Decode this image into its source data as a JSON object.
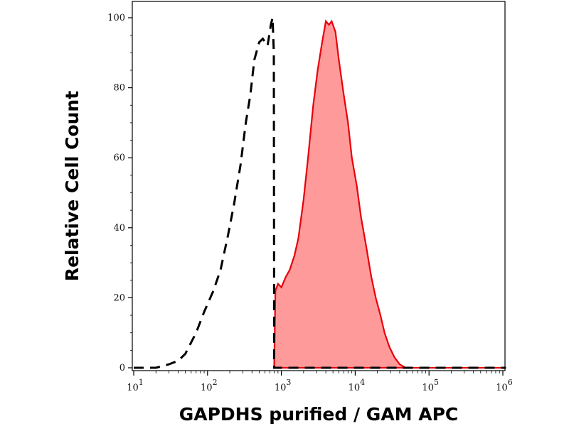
{
  "chart_data": {
    "type": "area",
    "title": "",
    "xlabel": "GAPDHS purified / GAM APC",
    "ylabel": "Relative Cell Count",
    "x_scale": "log",
    "xlim": [
      10,
      1100000
    ],
    "ylim": [
      0,
      100
    ],
    "grid": false,
    "x_ticks": [
      {
        "value": 10,
        "base": "10",
        "exp": "1"
      },
      {
        "value": 100,
        "base": "10",
        "exp": "2"
      },
      {
        "value": 1000,
        "base": "10",
        "exp": "3"
      },
      {
        "value": 10000,
        "base": "10",
        "exp": "4"
      },
      {
        "value": 100000,
        "base": "10",
        "exp": "5"
      },
      {
        "value": 1000000,
        "base": "10",
        "exp": "6"
      }
    ],
    "y_ticks": [
      {
        "value": 0,
        "label": "0"
      },
      {
        "value": 20,
        "label": "20"
      },
      {
        "value": 40,
        "label": "40"
      },
      {
        "value": 60,
        "label": "60"
      },
      {
        "value": 80,
        "label": "80"
      },
      {
        "value": 100,
        "label": "100"
      }
    ],
    "series": [
      {
        "style": "filled",
        "color": "#e8000b",
        "fill": "#ff9a9a",
        "points": [
          [
            800,
            0
          ],
          [
            830,
            22
          ],
          [
            900,
            24
          ],
          [
            1000,
            23
          ],
          [
            1150,
            26
          ],
          [
            1300,
            28
          ],
          [
            1500,
            32
          ],
          [
            1700,
            37
          ],
          [
            2000,
            48
          ],
          [
            2300,
            60
          ],
          [
            2700,
            75
          ],
          [
            3100,
            85
          ],
          [
            3500,
            92
          ],
          [
            4000,
            99
          ],
          [
            4400,
            98
          ],
          [
            4800,
            99
          ],
          [
            5400,
            96
          ],
          [
            6000,
            88
          ],
          [
            7000,
            78
          ],
          [
            8000,
            70
          ],
          [
            9000,
            60
          ],
          [
            10500,
            52
          ],
          [
            12000,
            43
          ],
          [
            14000,
            35
          ],
          [
            16500,
            26
          ],
          [
            19000,
            20
          ],
          [
            22000,
            15
          ],
          [
            25000,
            10
          ],
          [
            29000,
            6
          ],
          [
            34000,
            3
          ],
          [
            40000,
            1
          ],
          [
            48000,
            0
          ],
          [
            1100000,
            0
          ]
        ]
      },
      {
        "style": "dashed",
        "color": "#000000",
        "points": [
          [
            10,
            0
          ],
          [
            20,
            0
          ],
          [
            30,
            1
          ],
          [
            40,
            2
          ],
          [
            50,
            4
          ],
          [
            70,
            10
          ],
          [
            90,
            16
          ],
          [
            120,
            22
          ],
          [
            150,
            28
          ],
          [
            190,
            38
          ],
          [
            230,
            47
          ],
          [
            280,
            58
          ],
          [
            330,
            70
          ],
          [
            380,
            78
          ],
          [
            430,
            88
          ],
          [
            500,
            93
          ],
          [
            560,
            94
          ],
          [
            650,
            92
          ],
          [
            720,
            98
          ],
          [
            760,
            100
          ],
          [
            790,
            90
          ],
          [
            800,
            0
          ],
          [
            1100000,
            0
          ]
        ]
      }
    ]
  }
}
